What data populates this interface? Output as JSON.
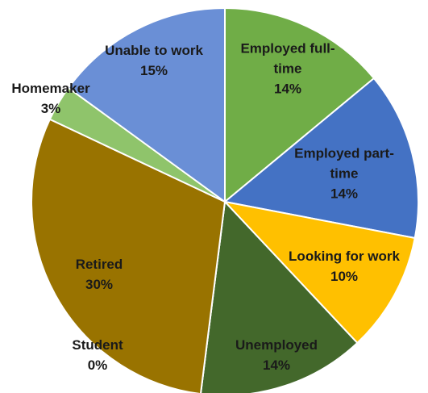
{
  "chart_data": {
    "type": "pie",
    "categories": [
      "Employed full-time",
      "Employed part-time",
      "Looking for work",
      "Unemployed",
      "Student",
      "Retired",
      "Homemaker",
      "Unable to work"
    ],
    "values": [
      14,
      14,
      10,
      14,
      0,
      30,
      3,
      15
    ],
    "value_labels": [
      "14%",
      "14%",
      "10%",
      "14%",
      "0%",
      "30%",
      "3%",
      "15%"
    ],
    "colors": [
      "#70ad47",
      "#4472c4",
      "#ffc000",
      "#43682b",
      "#a5a5a5",
      "#997300",
      "#8fc46b",
      "#6a8fd6"
    ]
  }
}
